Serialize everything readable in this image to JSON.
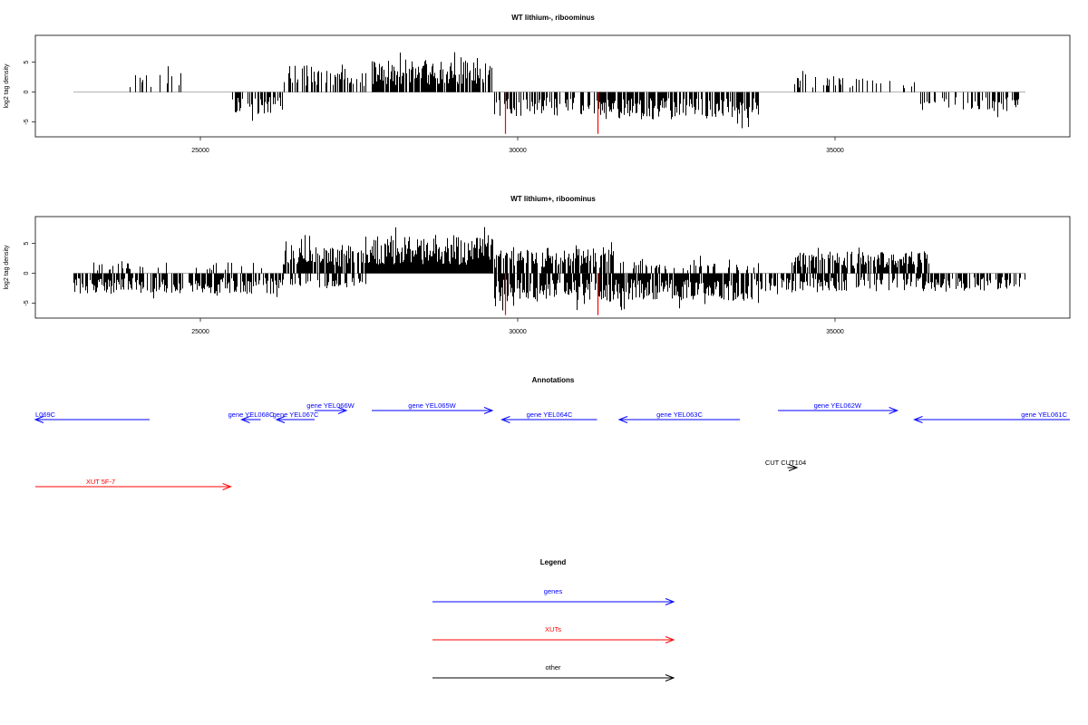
{
  "chart_data": [
    {
      "type": "bar",
      "title": "WT lithium-, riboominus",
      "xlabel": "",
      "ylabel": "log2 tag density",
      "xlim": [
        22400,
        38700
      ],
      "ylim": [
        -7.5,
        9.5
      ],
      "xticks": [
        "25000",
        "30000",
        "35000"
      ],
      "yticks": [
        "5",
        "0",
        "-5"
      ],
      "grid": false,
      "baseline": [
        23000,
        38000
      ],
      "regions": [
        {
          "x0": 23800,
          "x1": 25000,
          "dens": 0.12,
          "amp": 3.0,
          "sign": 1,
          "seed": 11
        },
        {
          "x0": 25500,
          "x1": 26300,
          "dens": 0.5,
          "amp": 3.2,
          "sign": -1,
          "seed": 12
        },
        {
          "x0": 26300,
          "x1": 27600,
          "dens": 0.45,
          "amp": 4.0,
          "sign": 1,
          "seed": 13
        },
        {
          "x0": 27700,
          "x1": 29600,
          "dens": 0.85,
          "amp": 4.6,
          "sign": 1,
          "seed": 14
        },
        {
          "x0": 29600,
          "x1": 31300,
          "dens": 0.55,
          "amp": 3.6,
          "sign": -1,
          "seed": 15
        },
        {
          "x0": 31300,
          "x1": 33800,
          "dens": 0.75,
          "amp": 4.0,
          "sign": -1,
          "seed": 16
        },
        {
          "x0": 34200,
          "x1": 36300,
          "dens": 0.25,
          "amp": 2.4,
          "sign": 1,
          "seed": 17
        },
        {
          "x0": 36300,
          "x1": 38000,
          "dens": 0.4,
          "amp": 2.8,
          "sign": -1,
          "seed": 18
        }
      ],
      "markers": [
        {
          "x": 29800,
          "y": -7.0,
          "color": "#ff0000"
        },
        {
          "x": 31260,
          "y": -7.0,
          "color": "#ff0000"
        }
      ]
    },
    {
      "type": "bar",
      "title": "WT lithium+, riboominus",
      "xlabel": "",
      "ylabel": "log2 tag density",
      "xlim": [
        22400,
        38700
      ],
      "ylim": [
        -7.5,
        9.5
      ],
      "xticks": [
        "25000",
        "30000",
        "35000"
      ],
      "yticks": [
        "5",
        "0",
        "-5"
      ],
      "grid": false,
      "baseline": [
        23000,
        38000
      ],
      "regions": [
        {
          "x0": 23000,
          "x1": 26300,
          "dens": 0.7,
          "amp": 3.0,
          "sign": -1,
          "seed": 21
        },
        {
          "x0": 23200,
          "x1": 26000,
          "dens": 0.15,
          "amp": 1.8,
          "sign": 1,
          "seed": 22
        },
        {
          "x0": 26300,
          "x1": 27600,
          "dens": 0.85,
          "amp": 4.2,
          "sign": 1,
          "seed": 23
        },
        {
          "x0": 26400,
          "x1": 27600,
          "dens": 0.3,
          "amp": 2.2,
          "sign": -1,
          "seed": 24
        },
        {
          "x0": 27600,
          "x1": 29600,
          "dens": 1.0,
          "amp": 5.6,
          "sign": 1,
          "seed": 25
        },
        {
          "x0": 29600,
          "x1": 31500,
          "dens": 0.75,
          "amp": 3.8,
          "sign": 1,
          "seed": 26
        },
        {
          "x0": 29600,
          "x1": 31500,
          "dens": 0.75,
          "amp": 4.2,
          "sign": -1,
          "seed": 27
        },
        {
          "x0": 31500,
          "x1": 33800,
          "dens": 0.85,
          "amp": 4.0,
          "sign": -1,
          "seed": 28
        },
        {
          "x0": 31500,
          "x1": 33800,
          "dens": 0.25,
          "amp": 2.0,
          "sign": 1,
          "seed": 29
        },
        {
          "x0": 34300,
          "x1": 36500,
          "dens": 0.75,
          "amp": 3.2,
          "sign": 1,
          "seed": 30
        },
        {
          "x0": 33800,
          "x1": 38000,
          "dens": 0.55,
          "amp": 2.6,
          "sign": -1,
          "seed": 31
        }
      ],
      "markers": [
        {
          "x": 29800,
          "y": -7.0,
          "color": "#ff0000"
        },
        {
          "x": 31260,
          "y": -7.0,
          "color": "#ff0000"
        }
      ]
    }
  ],
  "annotations": {
    "title": "Annotations",
    "xlim": [
      22400,
      38700
    ],
    "features": [
      {
        "label": "L069C",
        "x0": 22400,
        "x1": 24200,
        "strand": "-",
        "row": 1,
        "color": "#0000ff"
      },
      {
        "label": "gene YEL068C",
        "x0": 25650,
        "x1": 25950,
        "strand": "-",
        "row": 1,
        "color": "#0000ff"
      },
      {
        "label": "gene YEL067C",
        "x0": 26200,
        "x1": 26800,
        "strand": "-",
        "row": 1,
        "color": "#0000ff"
      },
      {
        "label": "gene YEL066W",
        "x0": 26800,
        "x1": 27300,
        "strand": "+",
        "row": 0,
        "color": "#0000ff"
      },
      {
        "label": "gene YEL065W",
        "x0": 27700,
        "x1": 29600,
        "strand": "+",
        "row": 0,
        "color": "#0000ff"
      },
      {
        "label": "gene YEL064C",
        "x0": 29750,
        "x1": 31250,
        "strand": "-",
        "row": 1,
        "color": "#0000ff"
      },
      {
        "label": "gene YEL063C",
        "x0": 31600,
        "x1": 33500,
        "strand": "-",
        "row": 1,
        "color": "#0000ff"
      },
      {
        "label": "gene YEL062W",
        "x0": 34100,
        "x1": 35980,
        "strand": "+",
        "row": 0,
        "color": "#0000ff"
      },
      {
        "label": "gene YEL061C",
        "x0": 36250,
        "x1": 38700,
        "strand": "-",
        "row": 1,
        "color": "#0000ff"
      },
      {
        "label": "CUT CUT104",
        "x0": 34250,
        "x1": 34400,
        "strand": "+",
        "row": 2,
        "color": "#000000"
      },
      {
        "label": "XUT 5F-7",
        "x0": 22400,
        "x1": 25480,
        "strand": "+",
        "row": 3,
        "color": "#ff0000"
      }
    ]
  },
  "legend": {
    "title": "Legend",
    "items": [
      {
        "label": "genes",
        "color": "#0000ff"
      },
      {
        "label": "XUTs",
        "color": "#ff0000"
      },
      {
        "label": "other",
        "color": "#000000"
      }
    ]
  }
}
